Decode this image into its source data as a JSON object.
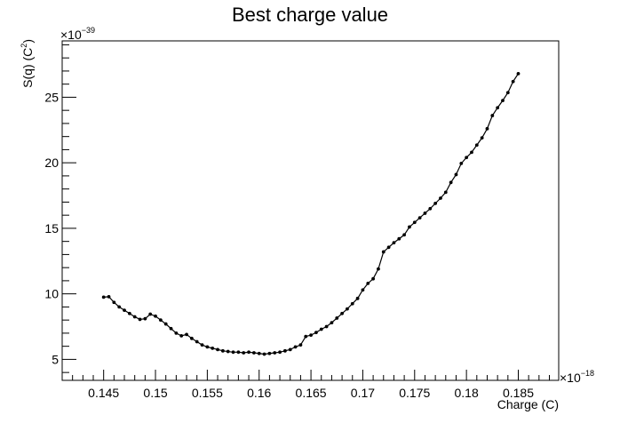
{
  "chart_data": {
    "type": "line",
    "title": "Best charge value",
    "xlabel": "Charge (C)",
    "ylabel_base": "S(q) (C",
    "ylabel_sup": "2",
    "ylabel_end": ")",
    "x_multiplier": {
      "base": "×10",
      "exp": "−18"
    },
    "y_multiplier": {
      "base": "×10",
      "exp": "−39"
    },
    "xlim": [
      0.141,
      0.1889
    ],
    "ylim": [
      3.4,
      29.3
    ],
    "x_ticks": [
      0.145,
      0.15,
      0.155,
      0.16,
      0.165,
      0.17,
      0.175,
      0.18,
      0.185
    ],
    "x_tick_labels": [
      "0.145",
      "0.15",
      "0.155",
      "0.16",
      "0.165",
      "0.17",
      "0.175",
      "0.18",
      "0.185"
    ],
    "y_ticks": [
      5,
      10,
      15,
      20,
      25
    ],
    "y_tick_labels": [
      "5",
      "10",
      "15",
      "20",
      "25"
    ],
    "grid": false,
    "x": [
      0.145,
      0.1455,
      0.146,
      0.1465,
      0.147,
      0.1475,
      0.148,
      0.1485,
      0.149,
      0.1495,
      0.15,
      0.1505,
      0.151,
      0.1515,
      0.152,
      0.1525,
      0.153,
      0.1535,
      0.154,
      0.1545,
      0.155,
      0.1555,
      0.156,
      0.1565,
      0.157,
      0.1575,
      0.158,
      0.1585,
      0.159,
      0.1595,
      0.16,
      0.1605,
      0.161,
      0.1615,
      0.162,
      0.1625,
      0.163,
      0.1635,
      0.164,
      0.1645,
      0.165,
      0.1655,
      0.166,
      0.1665,
      0.167,
      0.1675,
      0.168,
      0.1685,
      0.169,
      0.1695,
      0.17,
      0.1705,
      0.171,
      0.1715,
      0.172,
      0.1725,
      0.173,
      0.1735,
      0.174,
      0.1745,
      0.175,
      0.1755,
      0.176,
      0.1765,
      0.177,
      0.1775,
      0.178,
      0.1785,
      0.179,
      0.1795,
      0.18,
      0.1805,
      0.181,
      0.1815,
      0.182,
      0.1825,
      0.183,
      0.1835,
      0.184,
      0.1845,
      0.185
    ],
    "y": [
      9.75,
      9.78,
      9.35,
      9.0,
      8.75,
      8.5,
      8.25,
      8.05,
      8.1,
      8.45,
      8.3,
      8.0,
      7.7,
      7.35,
      7.0,
      6.8,
      6.9,
      6.6,
      6.35,
      6.1,
      5.95,
      5.85,
      5.75,
      5.65,
      5.6,
      5.55,
      5.55,
      5.5,
      5.55,
      5.5,
      5.45,
      5.4,
      5.45,
      5.5,
      5.55,
      5.65,
      5.75,
      5.95,
      6.1,
      6.75,
      6.85,
      7.05,
      7.3,
      7.5,
      7.8,
      8.15,
      8.5,
      8.85,
      9.25,
      9.65,
      10.3,
      10.8,
      11.15,
      11.9,
      13.2,
      13.55,
      13.9,
      14.2,
      14.5,
      15.1,
      15.45,
      15.8,
      16.15,
      16.5,
      16.9,
      17.3,
      17.75,
      18.5,
      19.1,
      19.95,
      20.4,
      20.8,
      21.35,
      21.9,
      22.6,
      23.6,
      24.2,
      24.75,
      25.35,
      26.2,
      26.8
    ]
  }
}
